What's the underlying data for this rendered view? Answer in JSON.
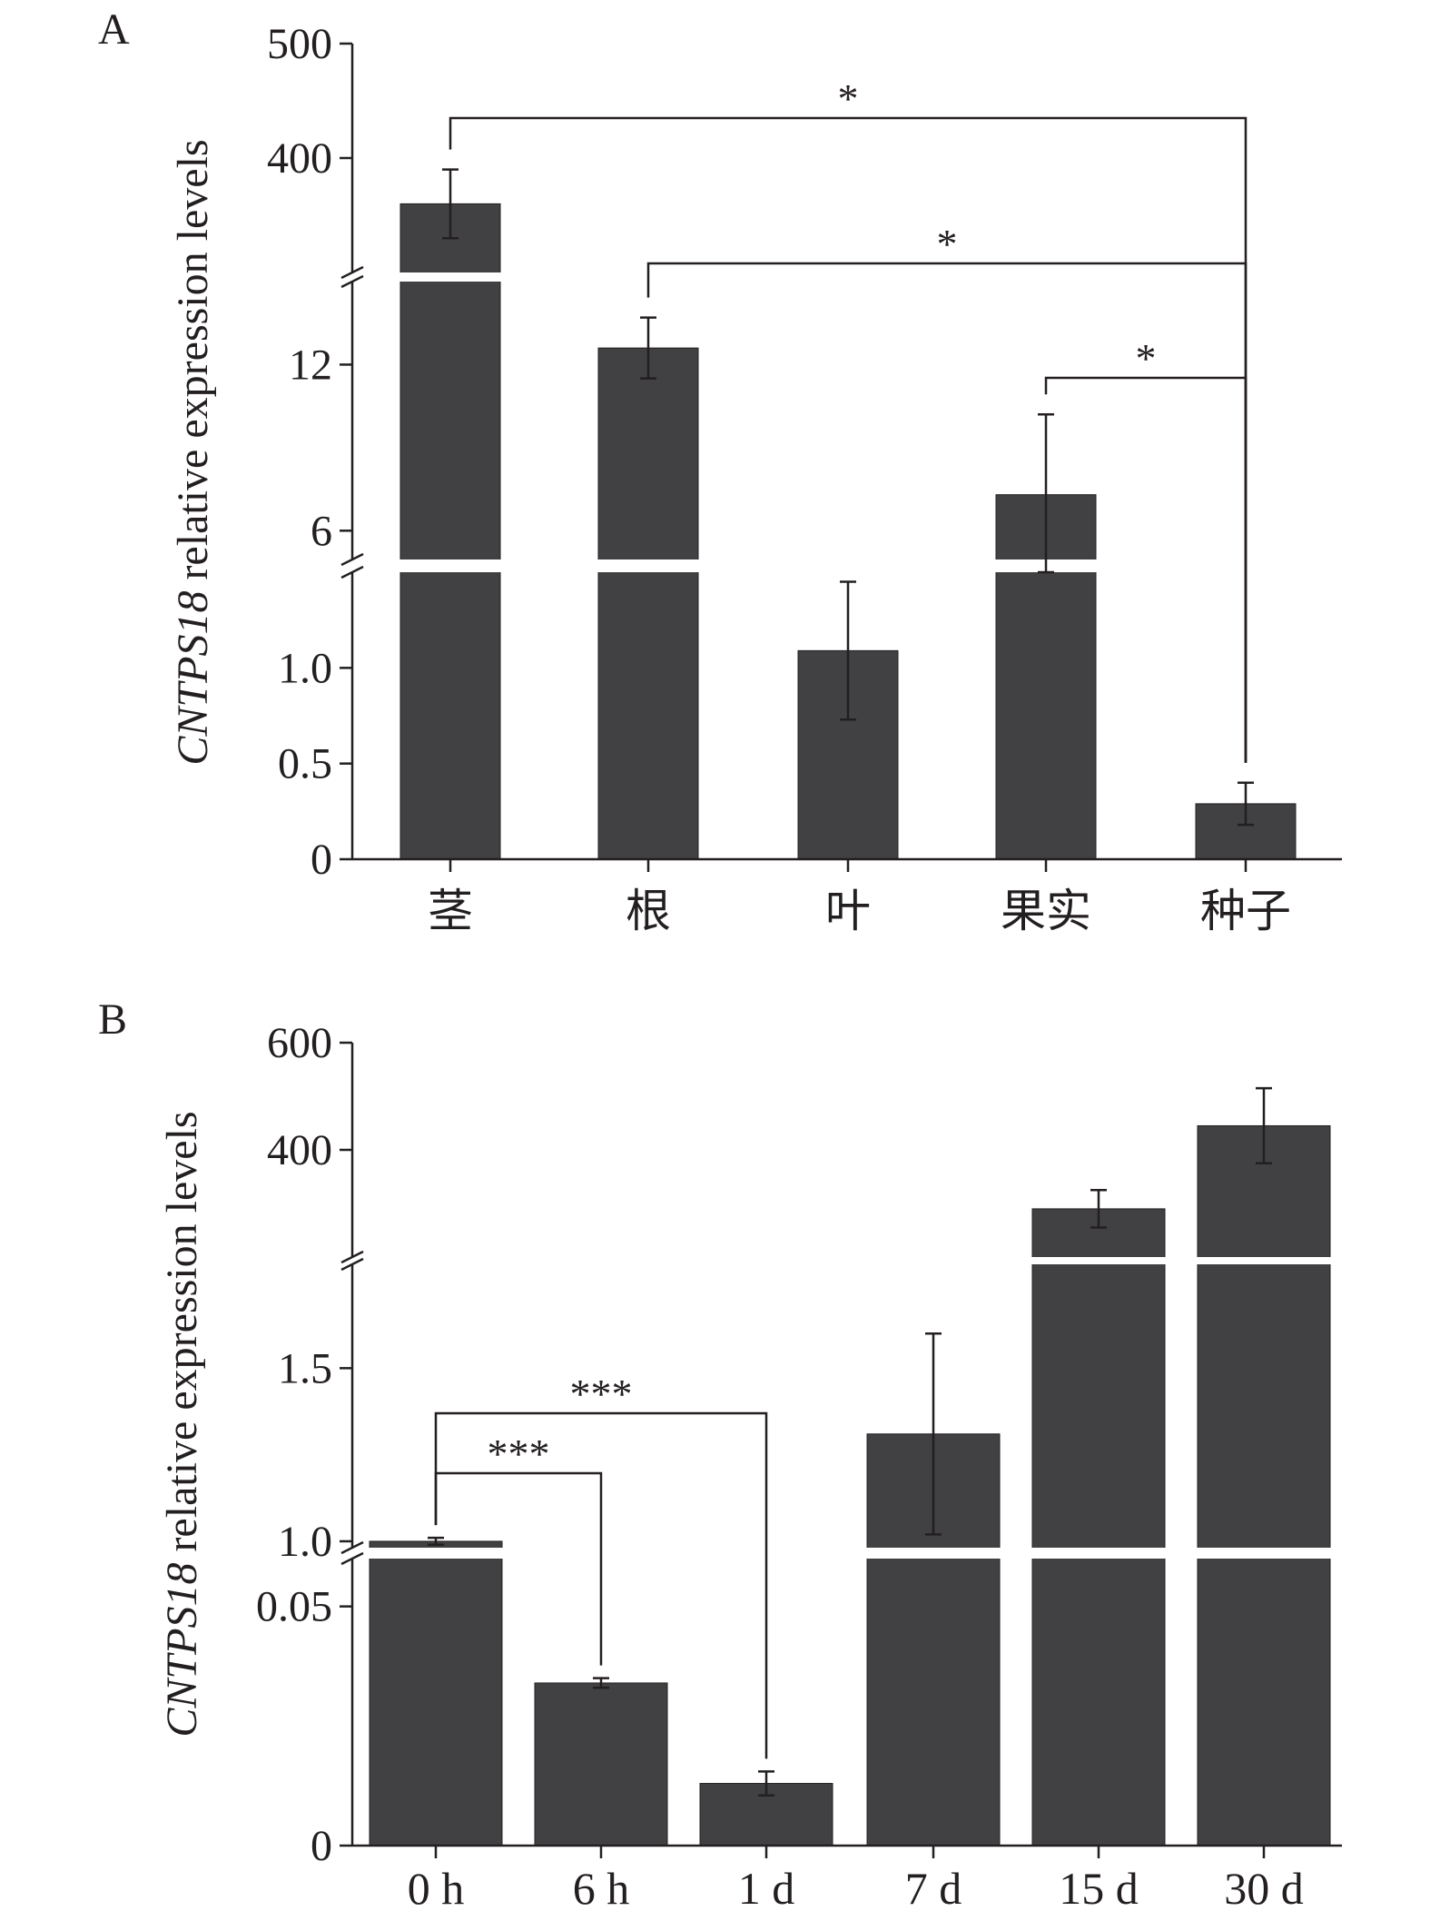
{
  "colors": {
    "bar": "#414042",
    "axis": "#231f20",
    "background": "#ffffff"
  },
  "chart_data": [
    {
      "type": "bar",
      "panel_label": "A",
      "ylabel_italic": "CNTPS18",
      "ylabel_rest": " relative expression levels",
      "categories": [
        "茎",
        "根",
        "叶",
        "果实",
        "种子"
      ],
      "values": [
        360,
        12.6,
        1.09,
        7.3,
        0.29
      ],
      "errors": [
        30,
        1.1,
        0.36,
        2.9,
        0.11
      ],
      "yticks": [
        "500",
        "400",
        "12",
        "6",
        "1.0",
        "0.5",
        "0"
      ],
      "axis_breaks": [
        [
          1.5,
          4.5
        ],
        [
          15,
          300
        ]
      ],
      "significance": [
        {
          "from": "茎",
          "to": "种子",
          "label": "*"
        },
        {
          "from": "根",
          "to": "种子",
          "label": "*"
        },
        {
          "from": "果实",
          "to": "种子",
          "label": "*"
        }
      ]
    },
    {
      "type": "bar",
      "panel_label": "B",
      "ylabel_italic": "CNTPS18",
      "ylabel_rest": " relative expression levels",
      "categories": [
        "0 h",
        "6 h",
        "1 d",
        "7 d",
        "15 d",
        "30 d"
      ],
      "values": [
        1.0,
        0.034,
        0.013,
        1.31,
        290,
        445
      ],
      "errors": [
        0.01,
        0.001,
        0.0025,
        0.29,
        35,
        70
      ],
      "yticks": [
        "600",
        "400",
        "1.5",
        "1.0",
        "0.05",
        "0"
      ],
      "axis_breaks": [
        [
          0.06,
          0.95
        ],
        [
          1.8,
          200
        ]
      ],
      "significance": [
        {
          "from": "0 h",
          "to": "6 h",
          "label": "***"
        },
        {
          "from": "0 h",
          "to": "1 d",
          "label": "***"
        }
      ]
    }
  ]
}
